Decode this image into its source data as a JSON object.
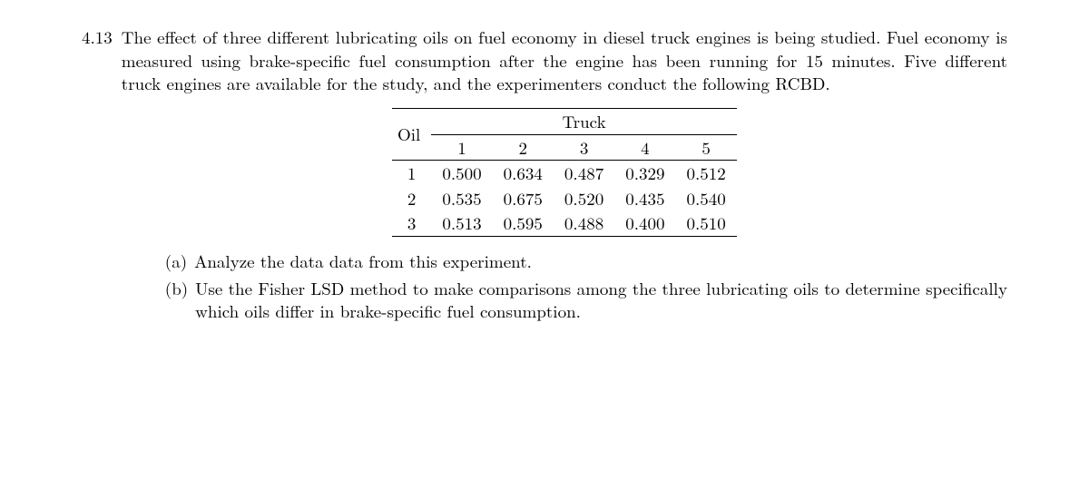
{
  "problem": {
    "number": "4.13",
    "text": "The effect of three different lubricating oils on fuel economy in diesel truck engines is being studied. Fuel economy is measured using brake-specific fuel consumption after the engine has been running for 15 minutes. Five different truck engines are available for the study, and the experimenters conduct the following RCBD."
  },
  "table": {
    "row_header_label": "Oil",
    "col_group_label": "Truck",
    "columns": [
      "1",
      "2",
      "3",
      "4",
      "5"
    ],
    "rows": [
      {
        "label": "1",
        "cells": [
          "0.500",
          "0.634",
          "0.487",
          "0.329",
          "0.512"
        ]
      },
      {
        "label": "2",
        "cells": [
          "0.535",
          "0.675",
          "0.520",
          "0.435",
          "0.540"
        ]
      },
      {
        "label": "3",
        "cells": [
          "0.513",
          "0.595",
          "0.488",
          "0.400",
          "0.510"
        ]
      }
    ]
  },
  "subparts": [
    {
      "marker": "(a)",
      "text": "Analyze the data data from this experiment."
    },
    {
      "marker": "(b)",
      "text": "Use the Fisher LSD method to make comparisons among the three lubricating oils to determine specifically which oils differ in brake-specific fuel consumption."
    }
  ]
}
